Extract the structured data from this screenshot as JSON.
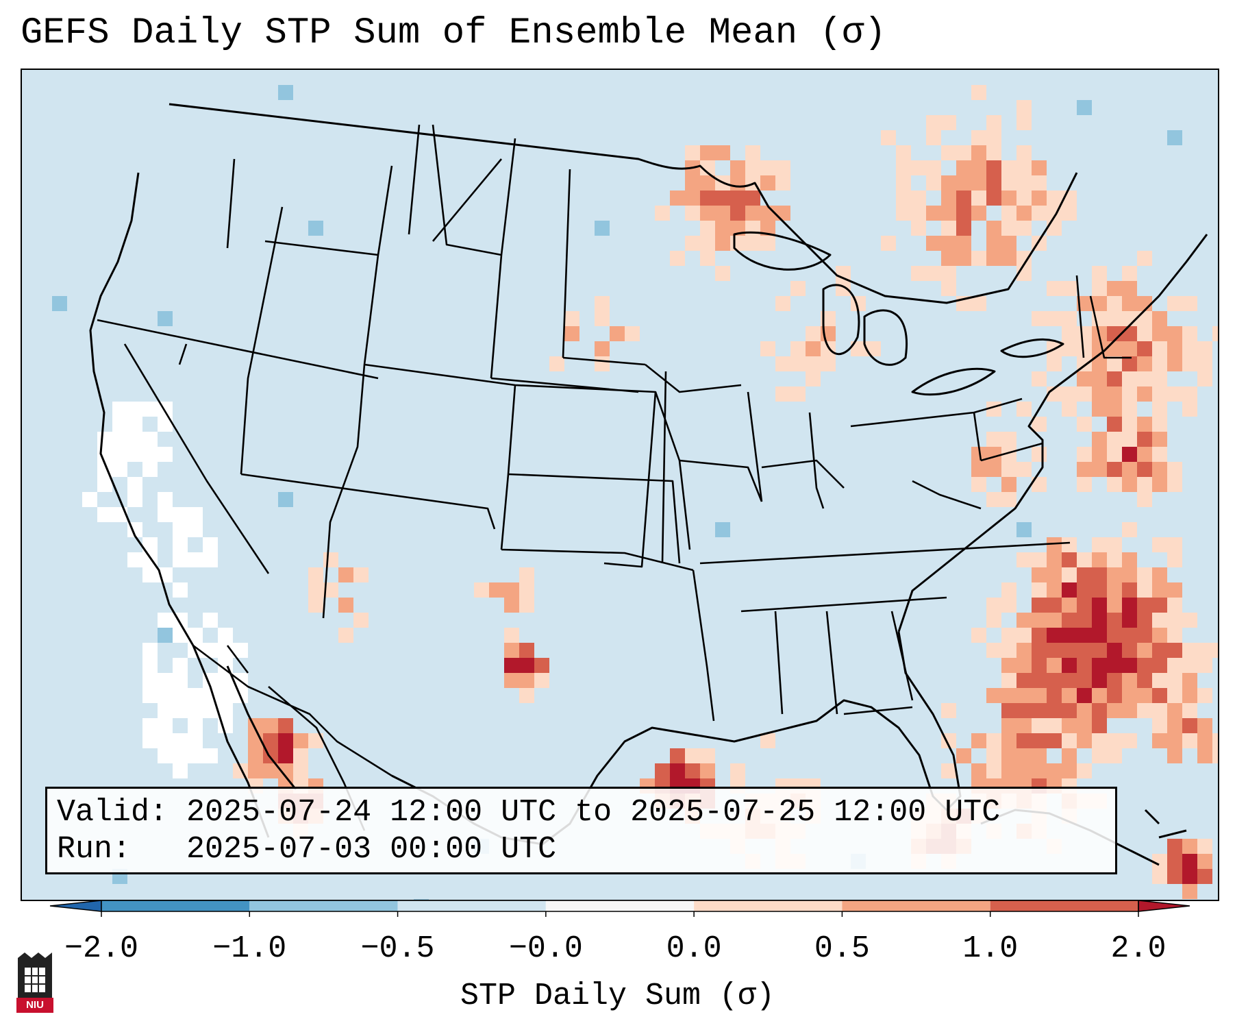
{
  "title": "GEFS Daily STP Sum of Ensemble Mean (σ)",
  "info": {
    "valid_label": "Valid:",
    "valid_value": "2025-07-24 12:00 UTC to 2025-07-25 12:00 UTC",
    "run_label": "Run:",
    "run_value": "2025-07-03 00:00 UTC"
  },
  "colorbar": {
    "label": "STP Daily Sum (σ)",
    "ticks": [
      "−2.0",
      "−1.0",
      "−0.5",
      "−0.0",
      "0.0",
      "0.5",
      "1.0",
      "2.0"
    ],
    "colors": [
      "#2166ac",
      "#4393c3",
      "#92c5de",
      "#d1e5f0",
      "#f7f7f7",
      "#fddbc7",
      "#f4a582",
      "#d6604d",
      "#b2182b"
    ]
  },
  "logo": {
    "text": "NIU"
  },
  "legend_colors": {
    "background": "#d1e5f0",
    "missing": "#ffffff",
    "light_red": "#fddbc7",
    "medium_red": "#f4a582",
    "strong_red": "#d6604d",
    "dark_red": "#b2182b",
    "light_blue": "#92c5de"
  }
}
